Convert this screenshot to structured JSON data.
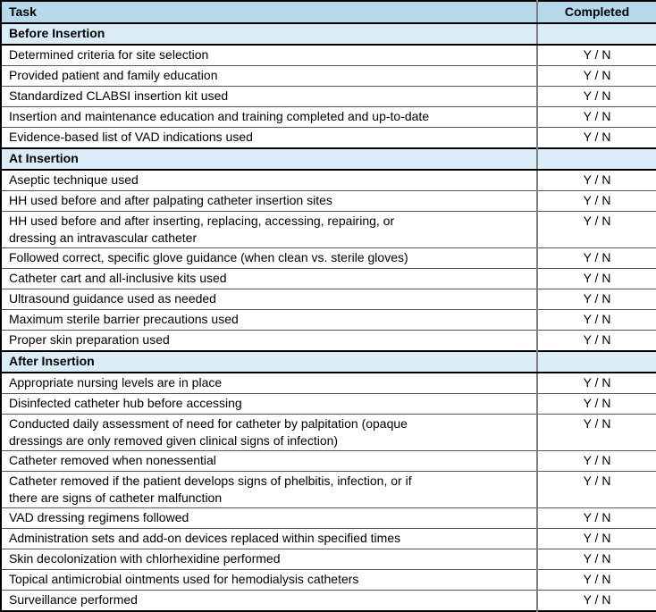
{
  "table": {
    "columns": [
      "Task",
      "Completed"
    ],
    "yn_label": "Y / N",
    "colors": {
      "header_bg": "#b5d8ea",
      "section_bg": "#d9ecf7",
      "outer_border": "#000000",
      "row_line": "#595959",
      "column_line": "#7f7f7f"
    },
    "sections": [
      {
        "title": "Before Insertion",
        "tasks": [
          "Determined criteria for site selection",
          "Provided patient and family education",
          "Standardized CLABSI insertion kit used",
          "Insertion and maintenance education and training completed and up-to-date",
          "Evidence-based list of VAD indications used"
        ]
      },
      {
        "title": "At Insertion",
        "tasks": [
          "Aseptic technique used",
          "HH used before and after palpating catheter insertion sites",
          "HH used before and after inserting, replacing, accessing, repairing, or\ndressing an intravascular catheter",
          "Followed correct, specific glove guidance (when clean vs. sterile gloves)",
          "Catheter cart and all-inclusive kits used",
          "Ultrasound guidance used as needed",
          "Maximum sterile barrier precautions used",
          "Proper skin preparation used"
        ]
      },
      {
        "title": "After Insertion",
        "tasks": [
          "Appropriate nursing levels are in place",
          "Disinfected catheter hub before accessing",
          "Conducted daily assessment of need for catheter by palpitation (opaque\ndressings are only removed given clinical signs of infection)",
          "Catheter removed when nonessential",
          "Catheter removed if the patient develops signs of phelbitis, infection, or if\nthere are signs of catheter malfunction",
          "VAD dressing regimens followed",
          "Administration sets and add-on devices replaced within specified times",
          "Skin decolonization with chlorhexidine performed",
          "Topical antimicrobial ointments used for hemodialysis catheters",
          "Surveillance performed"
        ]
      }
    ]
  }
}
